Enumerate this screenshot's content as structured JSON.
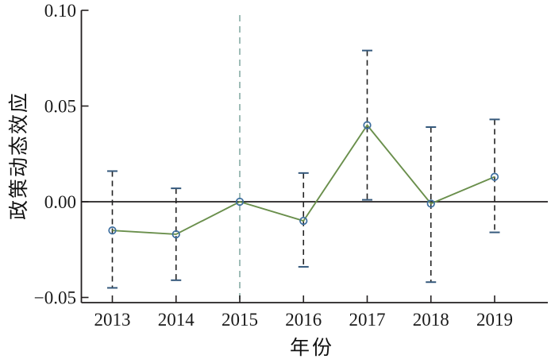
{
  "chart_data": {
    "type": "line",
    "subtype": "event-study-with-error-bars",
    "title": "",
    "xlabel": "年份",
    "ylabel": "政策动态效应",
    "x": [
      2013,
      2014,
      2015,
      2016,
      2017,
      2018,
      2019
    ],
    "xtick_labels": [
      "2013",
      "2014",
      "2015",
      "2016",
      "2017",
      "2018",
      "2019"
    ],
    "series": [
      {
        "estimates": [
          -0.015,
          -0.017,
          0.0,
          -0.01,
          0.04,
          -0.001,
          0.013
        ],
        "ci_low": [
          -0.045,
          -0.041,
          null,
          -0.034,
          0.001,
          -0.042,
          -0.016
        ],
        "ci_high": [
          0.016,
          0.007,
          null,
          0.015,
          0.079,
          0.039,
          0.043
        ]
      }
    ],
    "ylim": [
      -0.0525,
      0.1
    ],
    "yticks": [
      0.1,
      0.05,
      0.0,
      -0.05
    ],
    "ytick_labels": [
      "0.10",
      "0.05",
      "0.00",
      "−0.05"
    ],
    "reference_line_x": 2015,
    "zero_line_y": 0,
    "grid": false,
    "legend_position": "none",
    "colors": {
      "line": "#6a8f4c",
      "marker_ring": "#3c6e9f",
      "errorbar_dash": "#222222",
      "errorbar_cap": "#35597c",
      "reference_line": "#93b5af",
      "axis": "#231f20",
      "text": "#111111"
    }
  }
}
